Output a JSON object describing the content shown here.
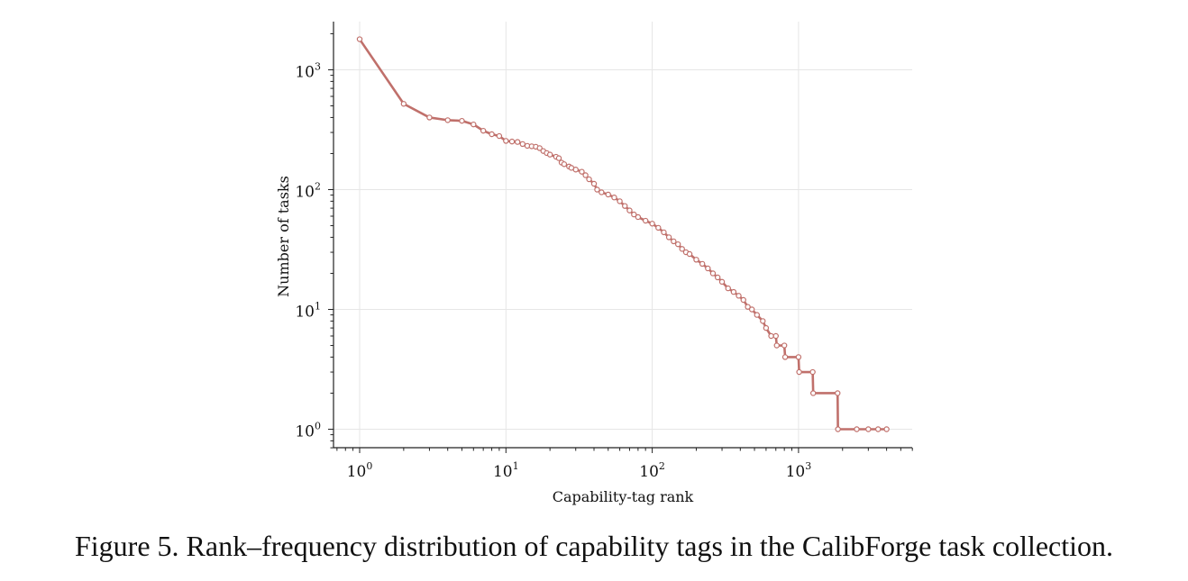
{
  "caption": "Figure 5. Rank–frequency distribution of capability tags in the CalibForge task collection.",
  "chart_data": {
    "type": "line",
    "xlabel": "Capability-tag rank",
    "ylabel": "Number of tasks",
    "xscale": "log",
    "yscale": "log",
    "xlim": [
      0.7,
      6000
    ],
    "ylim": [
      0.7,
      2500
    ],
    "x_ticks": [
      {
        "base": "10",
        "exp": "0"
      },
      {
        "base": "10",
        "exp": "1"
      },
      {
        "base": "10",
        "exp": "2"
      },
      {
        "base": "10",
        "exp": "3"
      }
    ],
    "y_ticks": [
      {
        "base": "10",
        "exp": "0"
      },
      {
        "base": "10",
        "exp": "1"
      },
      {
        "base": "10",
        "exp": "2"
      },
      {
        "base": "10",
        "exp": "3"
      }
    ],
    "grid": true,
    "marker": "open-circle",
    "color": "#c0706b",
    "series": [
      {
        "points": [
          [
            1,
            1800
          ],
          [
            2,
            520
          ],
          [
            3,
            400
          ],
          [
            4,
            380
          ],
          [
            5,
            375
          ],
          [
            6,
            350
          ],
          [
            7,
            310
          ],
          [
            8,
            290
          ],
          [
            9,
            280
          ],
          [
            10,
            255
          ],
          [
            11,
            252
          ],
          [
            12,
            250
          ],
          [
            13,
            240
          ],
          [
            14,
            232
          ],
          [
            15,
            230
          ],
          [
            16,
            228
          ],
          [
            17,
            222
          ],
          [
            18,
            210
          ],
          [
            19,
            202
          ],
          [
            20,
            196
          ],
          [
            22,
            188
          ],
          [
            23,
            183
          ],
          [
            24,
            168
          ],
          [
            25,
            163
          ],
          [
            27,
            156
          ],
          [
            28,
            152
          ],
          [
            30,
            147
          ],
          [
            33,
            141
          ],
          [
            35,
            132
          ],
          [
            37,
            122
          ],
          [
            40,
            112
          ],
          [
            42,
            100
          ],
          [
            45,
            95
          ],
          [
            50,
            91
          ],
          [
            55,
            86
          ],
          [
            60,
            80
          ],
          [
            65,
            73
          ],
          [
            70,
            67
          ],
          [
            75,
            62
          ],
          [
            80,
            59
          ],
          [
            90,
            55
          ],
          [
            100,
            52
          ],
          [
            110,
            48
          ],
          [
            120,
            44
          ],
          [
            130,
            40
          ],
          [
            140,
            37
          ],
          [
            150,
            35
          ],
          [
            160,
            32
          ],
          [
            170,
            30
          ],
          [
            180,
            29
          ],
          [
            200,
            26
          ],
          [
            220,
            24
          ],
          [
            240,
            22
          ],
          [
            260,
            20
          ],
          [
            280,
            18.5
          ],
          [
            300,
            17
          ],
          [
            330,
            15
          ],
          [
            360,
            14
          ],
          [
            390,
            13
          ],
          [
            420,
            12
          ],
          [
            450,
            10.5
          ],
          [
            480,
            10
          ],
          [
            520,
            9
          ],
          [
            570,
            8
          ],
          [
            600,
            7
          ],
          [
            650,
            6
          ],
          [
            700,
            6
          ],
          [
            710,
            5
          ],
          [
            800,
            5
          ],
          [
            810,
            4
          ],
          [
            1000,
            4
          ],
          [
            1010,
            3
          ],
          [
            1250,
            3
          ],
          [
            1260,
            2
          ],
          [
            1850,
            2
          ],
          [
            1860,
            1
          ],
          [
            2500,
            1
          ],
          [
            3000,
            1
          ],
          [
            3500,
            1
          ],
          [
            4000,
            1
          ]
        ]
      }
    ]
  }
}
